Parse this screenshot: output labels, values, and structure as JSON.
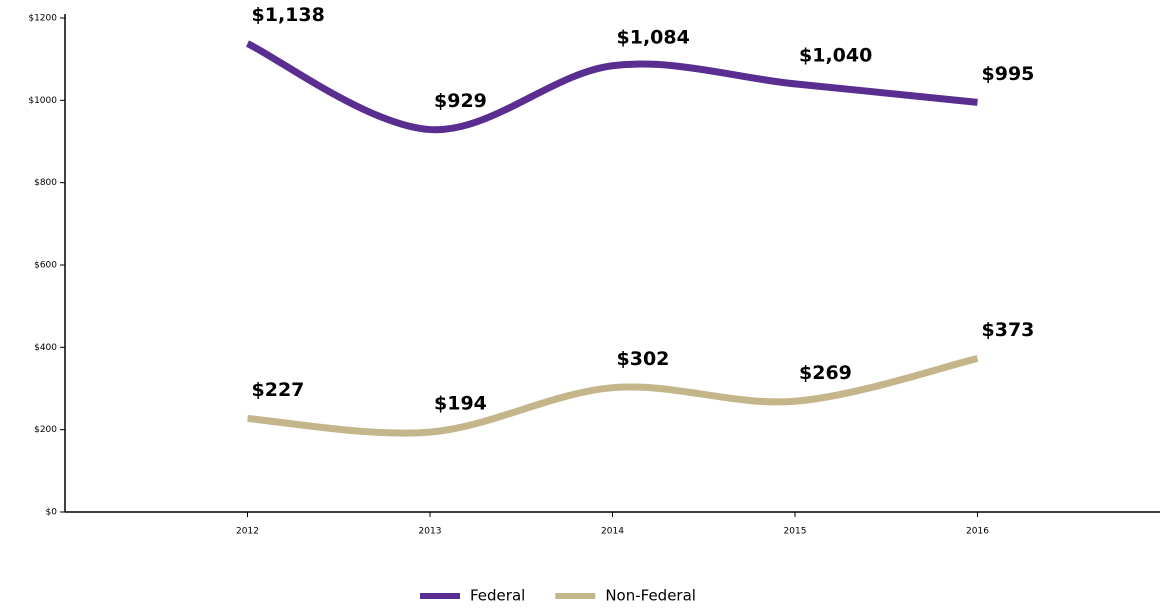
{
  "chart_data": {
    "type": "line",
    "categories": [
      "2012",
      "2013",
      "2014",
      "2015",
      "2016"
    ],
    "series": [
      {
        "name": "Federal",
        "color": "#5a2e91",
        "values": [
          1138,
          929,
          1084,
          1040,
          995
        ],
        "value_labels": [
          "$1,138",
          "$929",
          "$1,084",
          "$1,040",
          "$995"
        ]
      },
      {
        "name": "Non-Federal",
        "color": "#c4b58b",
        "values": [
          227,
          194,
          302,
          269,
          373
        ],
        "value_labels": [
          "$227",
          "$194",
          "$302",
          "$269",
          "$373"
        ]
      }
    ],
    "ylim": [
      0,
      1200
    ],
    "yticks": [
      {
        "value": 0,
        "label": "$0"
      },
      {
        "value": 200,
        "label": "$200"
      },
      {
        "value": 400,
        "label": "$400"
      },
      {
        "value": 600,
        "label": "$600"
      },
      {
        "value": 800,
        "label": "$800"
      },
      {
        "value": 1000,
        "label": "$1000"
      },
      {
        "value": 1200,
        "label": "$1200"
      }
    ],
    "grid": false,
    "legend": "bottom"
  }
}
